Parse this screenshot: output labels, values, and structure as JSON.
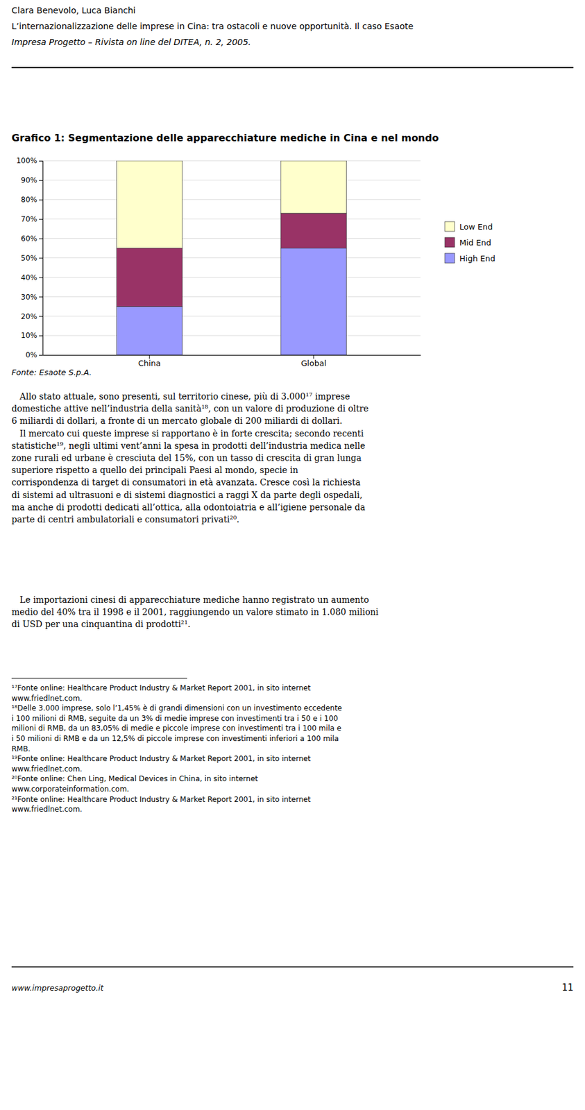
{
  "header": [
    "Clara Benevolo, Luca Bianchi",
    "L’internazionalizzazione delle imprese in Cina: tra ostacoli e nuove opportunità. Il caso Esaote",
    "Impresa Progetto – Rivista on line del DITEA, n. 2, 2005."
  ],
  "chart_data": {
    "type": "bar",
    "title": "Grafico 1: Segmentazione delle apparecchiature mediche in Cina e nel mondo",
    "categories": [
      "China",
      "Global"
    ],
    "series": [
      {
        "name": "High End",
        "color": "#9999ff",
        "values": [
          0.25,
          0.55
        ]
      },
      {
        "name": "Mid End",
        "color": "#993366",
        "values": [
          0.3,
          0.18
        ]
      },
      {
        "name": "Low End",
        "color": "#ffffcc",
        "values": [
          0.45,
          0.27
        ]
      }
    ],
    "stacked": true,
    "ylim": [
      0,
      1.0
    ],
    "yticks": [
      {
        "value": 0.0,
        "label": "0%"
      },
      {
        "value": 0.1,
        "label": "10%"
      },
      {
        "value": 0.2,
        "label": "20%"
      },
      {
        "value": 0.3,
        "label": "30%"
      },
      {
        "value": 0.4,
        "label": "40%"
      },
      {
        "value": 0.5,
        "label": "50%"
      },
      {
        "value": 0.6,
        "label": "60%"
      },
      {
        "value": 0.7,
        "label": "70%"
      },
      {
        "value": 0.8,
        "label": "80%"
      },
      {
        "value": 0.9,
        "label": "90%"
      },
      {
        "value": 1.0,
        "label": "100%"
      }
    ],
    "grid": true,
    "legend": "right"
  },
  "source": "Fonte: Esaote S.p.A.",
  "body": [
    [
      "   Allo stato attuale, sono presenti, sul territorio cinese, più di 3.000¹⁷ imprese",
      "domestiche attive nell’industria della sanità¹⁸, con un valore di produzione di oltre",
      "6 miliardi di dollari, a fronte di un mercato globale di 200 miliardi di dollari.",
      "   Il mercato cui queste imprese si rapportano è in forte crescita; secondo recenti",
      "statistiche¹⁹, negli ultimi vent’anni la spesa in prodotti dell’industria medica nelle",
      "zone rurali ed urbane è cresciuta del 15%, con un tasso di crescita di gran lunga",
      "superiore rispetto a quello dei principali Paesi al mondo, specie in",
      "corrispondenza di target di consumatori in età avanzata. Cresce così la richiesta",
      "di sistemi ad ultrasuoni e di sistemi diagnostici a raggi X da parte degli ospedali,",
      "ma anche di prodotti dedicati all’ottica, alla odontoiatria e all’igiene personale da",
      "parte di centri ambulatoriali e consumatori privati²⁰."
    ],
    [
      "   Le importazioni cinesi di apparecchiature mediche hanno registrato un aumento",
      "medio del 40% tra il 1998 e il 2001, raggiungendo un valore stimato in 1.080 milioni",
      "di USD per una cinquantina di prodotti²¹."
    ]
  ],
  "footnotes": [
    [
      "¹⁷Fonte online: Healthcare Product Industry & Market Report 2001, in sito internet",
      "www.friedlnet.com."
    ],
    [
      "¹⁸Delle 3.000 imprese, solo l’1,45% è di grandi dimensioni con un investimento eccedente",
      "i 100 milioni di RMB, seguite da un 3% di medie imprese con investimenti tra i 50 e i 100",
      "milioni di RMB, da un 83,05% di medie e piccole imprese con investimenti tra i 100 mila e",
      "i 50 milioni di RMB e da un 12,5% di piccole imprese con investimenti inferiori a 100 mila",
      "RMB."
    ],
    [
      "¹⁹Fonte online: Healthcare Product Industry & Market Report 2001, in sito internet",
      "www.friedlnet.com."
    ],
    [
      "²⁰Fonte online: Chen Ling, Medical Devices in China, in sito internet",
      "www.corporateinformation.com."
    ],
    [
      "²¹Fonte online: Healthcare Product Industry & Market Report 2001, in sito internet",
      "www.friedlnet.com."
    ]
  ],
  "footer_url": "www.impresaprogetto.it",
  "page_number": "11"
}
